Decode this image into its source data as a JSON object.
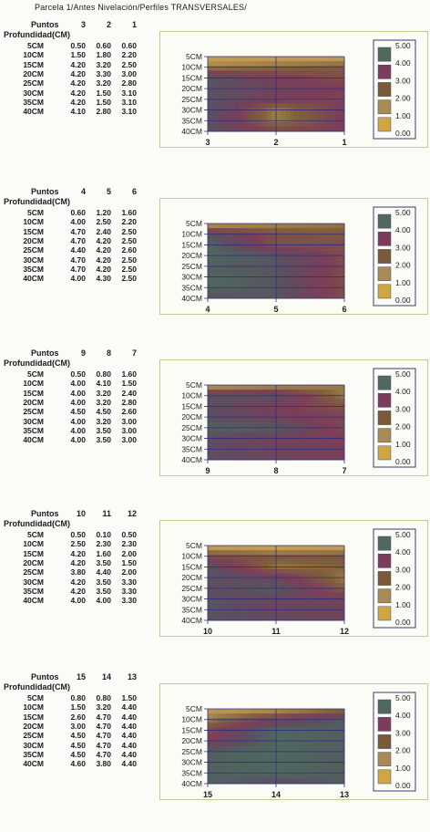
{
  "title": "Parcela 1/Antes Nivelación/Perfiles TRANSVERSALES/",
  "table_labels": {
    "points": "Puntos",
    "depth": "Profundidad(CM)"
  },
  "legend_levels": [
    "5.00",
    "4.00",
    "3.00",
    "2.00",
    "1.00",
    "0.00"
  ],
  "colors": {
    "band_4_5": "#51685e",
    "band_3_4": "#7c3c5c",
    "band_2_3": "#7a5a3a",
    "band_1_2": "#a98a54",
    "band_0_1": "#cfa640",
    "chart_frame": "#c9c98a",
    "legend_frame": "#3a3a74",
    "grid": "#2f2f7a"
  },
  "chart_data": [
    {
      "type": "heatmap",
      "points": [
        "3",
        "2",
        "1"
      ],
      "depths": [
        "5CM",
        "10CM",
        "15CM",
        "20CM",
        "25CM",
        "30CM",
        "35CM",
        "40CM"
      ],
      "values": [
        [
          0.5,
          0.6,
          0.6
        ],
        [
          1.5,
          1.8,
          2.2
        ],
        [
          4.2,
          3.2,
          2.5
        ],
        [
          4.2,
          3.3,
          3.0
        ],
        [
          4.2,
          3.2,
          2.8
        ],
        [
          4.2,
          1.5,
          3.1
        ],
        [
          4.2,
          1.5,
          3.1
        ],
        [
          4.1,
          2.8,
          3.1
        ]
      ],
      "colorbar": {
        "min": 0,
        "max": 5,
        "ticks": [
          "5.00",
          "4.00",
          "3.00",
          "2.00",
          "1.00",
          "0.00"
        ]
      }
    },
    {
      "type": "heatmap",
      "points": [
        "4",
        "5",
        "6"
      ],
      "depths": [
        "5CM",
        "10CM",
        "15CM",
        "20CM",
        "25CM",
        "30CM",
        "35CM",
        "40CM"
      ],
      "values": [
        [
          0.6,
          1.2,
          1.6
        ],
        [
          4.0,
          2.5,
          2.2
        ],
        [
          4.7,
          2.4,
          2.5
        ],
        [
          4.7,
          4.2,
          2.5
        ],
        [
          4.4,
          4.2,
          2.6
        ],
        [
          4.7,
          4.2,
          2.5
        ],
        [
          4.7,
          4.2,
          2.5
        ],
        [
          4.0,
          4.3,
          2.5
        ]
      ],
      "colorbar": {
        "min": 0,
        "max": 5,
        "ticks": [
          "5.00",
          "4.00",
          "3.00",
          "2.00",
          "1.00",
          "0.00"
        ]
      }
    },
    {
      "type": "heatmap",
      "points": [
        "9",
        "8",
        "7"
      ],
      "depths": [
        "5CM",
        "10CM",
        "15CM",
        "20CM",
        "25CM",
        "30CM",
        "35CM",
        "40CM"
      ],
      "values": [
        [
          0.5,
          0.8,
          1.6
        ],
        [
          4.0,
          4.1,
          1.5
        ],
        [
          4.0,
          3.2,
          2.4
        ],
        [
          4.0,
          3.2,
          2.8
        ],
        [
          4.5,
          4.5,
          2.6
        ],
        [
          4.0,
          3.2,
          3.0
        ],
        [
          4.0,
          3.5,
          3.0
        ],
        [
          4.0,
          3.5,
          3.0
        ]
      ],
      "colorbar": {
        "min": 0,
        "max": 5,
        "ticks": [
          "5.00",
          "4.00",
          "3.00",
          "2.00",
          "1.00",
          "0.00"
        ]
      }
    },
    {
      "type": "heatmap",
      "points": [
        "10",
        "11",
        "12"
      ],
      "depths": [
        "5CM",
        "10CM",
        "15CM",
        "20CM",
        "25CM",
        "30CM",
        "35CM",
        "40CM"
      ],
      "values": [
        [
          0.5,
          0.1,
          0.5
        ],
        [
          2.5,
          2.3,
          2.3
        ],
        [
          4.2,
          1.6,
          2.0
        ],
        [
          4.2,
          3.5,
          1.5
        ],
        [
          3.8,
          4.4,
          2.0
        ],
        [
          4.2,
          3.5,
          3.3
        ],
        [
          4.2,
          3.5,
          3.3
        ],
        [
          4.0,
          4.0,
          3.3
        ]
      ],
      "colorbar": {
        "min": 0,
        "max": 5,
        "ticks": [
          "5.00",
          "4.00",
          "3.00",
          "2.00",
          "1.00",
          "0.00"
        ]
      }
    },
    {
      "type": "heatmap",
      "points": [
        "15",
        "14",
        "13"
      ],
      "depths": [
        "5CM",
        "10CM",
        "15CM",
        "20CM",
        "25CM",
        "30CM",
        "35CM",
        "40CM"
      ],
      "values": [
        [
          0.8,
          0.8,
          1.5
        ],
        [
          1.5,
          3.2,
          4.4
        ],
        [
          2.6,
          4.7,
          4.4
        ],
        [
          3.0,
          4.7,
          4.4
        ],
        [
          4.5,
          4.7,
          4.4
        ],
        [
          4.5,
          4.7,
          4.4
        ],
        [
          4.5,
          4.7,
          4.4
        ],
        [
          4.6,
          3.8,
          4.4
        ]
      ],
      "colorbar": {
        "min": 0,
        "max": 5,
        "ticks": [
          "5.00",
          "4.00",
          "3.00",
          "2.00",
          "1.00",
          "0.00"
        ]
      }
    }
  ]
}
